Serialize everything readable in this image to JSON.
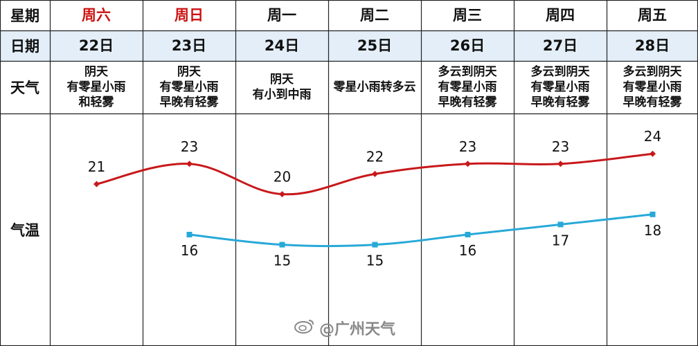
{
  "row_labels": {
    "weekday": "星期",
    "date": "日期",
    "weather": "天气",
    "temp": "气温"
  },
  "days": [
    {
      "weekday": "周六",
      "date": "22日",
      "weather": [
        "阴天",
        "有零星小雨",
        "和轻雾"
      ],
      "weekend": true
    },
    {
      "weekday": "周日",
      "date": "23日",
      "weather": [
        "阴天",
        "有零星小雨",
        "早晚有轻雾"
      ],
      "weekend": true
    },
    {
      "weekday": "周一",
      "date": "24日",
      "weather": [
        "阴天",
        "有小到中雨"
      ],
      "weekend": false
    },
    {
      "weekday": "周二",
      "date": "25日",
      "weather": [
        "零星小雨转多云"
      ],
      "weekend": false
    },
    {
      "weekday": "周三",
      "date": "26日",
      "weather": [
        "多云到阴天",
        "有零星小雨",
        "早晚有轻雾"
      ],
      "weekend": false
    },
    {
      "weekday": "周四",
      "date": "27日",
      "weather": [
        "多云到阴天",
        "有零星小雨",
        "早晚有轻雾"
      ],
      "weekend": false
    },
    {
      "weekday": "周五",
      "date": "28日",
      "weather": [
        "多云到阴天",
        "有零星小雨",
        "早晚有轻雾"
      ],
      "weekend": false
    }
  ],
  "colors": {
    "weekend": "#cc1111",
    "header_bg": "#e3eef8",
    "high_line": "#c8181a",
    "low_line": "#27a9d8",
    "grid": "#222222"
  },
  "chart_data": {
    "type": "line",
    "categories": [
      "22日",
      "23日",
      "24日",
      "25日",
      "26日",
      "27日",
      "28日"
    ],
    "series": [
      {
        "values": [
          21,
          23,
          20,
          22,
          23,
          23,
          24
        ]
      },
      {
        "values": [
          null,
          16,
          15,
          15,
          16,
          17,
          18
        ]
      }
    ],
    "ylim": [
      13,
      26
    ],
    "ylabel": "气温"
  },
  "watermark": {
    "text": "@广州天气",
    "icon": "weibo-icon"
  }
}
